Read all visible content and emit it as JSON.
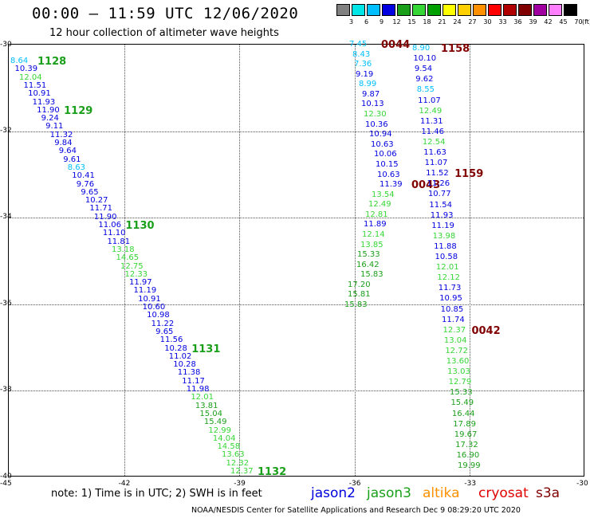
{
  "title": "00:00 – 11:59 UTC 12/06/2020",
  "subtitle": "12 hour collection of altimeter wave heights",
  "colorbar": {
    "labels": [
      "3",
      "6",
      "9",
      "12",
      "15",
      "18",
      "21",
      "24",
      "27",
      "30",
      "33",
      "36",
      "39",
      "42",
      "45",
      "70"
    ],
    "unit": "(ft)",
    "colors": [
      "#808080",
      "#00e5e5",
      "#00bfff",
      "#0000e0",
      "#1a9f1a",
      "#36d636",
      "#00a000",
      "#ffff00",
      "#ffd000",
      "#ff9000",
      "#ff0000",
      "#b00000",
      "#800000",
      "#a000a0",
      "#ff80ff",
      "#000000"
    ]
  },
  "map_data": {
    "lon_range": [
      -45,
      -30
    ],
    "lat_range": [
      -40,
      -30
    ],
    "x_ticks": [
      -45,
      -42,
      -39,
      -36,
      -33,
      -30
    ],
    "y_ticks": [
      -30,
      -32,
      -34,
      -36,
      -38,
      -40
    ],
    "grid": true
  },
  "tracks": [
    {
      "values": [
        {
          "v": "8.64",
          "c": "#00bfff"
        },
        {
          "v": "10.39",
          "c": "#0000e0"
        },
        {
          "v": "12.04",
          "c": "#36d636"
        },
        {
          "v": "11.51",
          "c": "#0000e0"
        },
        {
          "v": "10.91",
          "c": "#0000e0"
        },
        {
          "v": "11.93",
          "c": "#0000e0"
        },
        {
          "v": "11.90",
          "c": "#0000e0"
        },
        {
          "v": "9.24",
          "c": "#0000e0"
        },
        {
          "v": "9.11",
          "c": "#0000e0"
        },
        {
          "v": "11.32",
          "c": "#0000e0"
        },
        {
          "v": "9.84",
          "c": "#0000e0"
        },
        {
          "v": "9.64",
          "c": "#0000e0"
        },
        {
          "v": "9.61",
          "c": "#0000e0"
        },
        {
          "v": "8.63",
          "c": "#00bfff"
        },
        {
          "v": "10.41",
          "c": "#0000e0"
        },
        {
          "v": "9.76",
          "c": "#0000e0"
        },
        {
          "v": "9.65",
          "c": "#0000e0"
        },
        {
          "v": "10.27",
          "c": "#0000e0"
        },
        {
          "v": "11.71",
          "c": "#0000e0"
        },
        {
          "v": "11.90",
          "c": "#0000e0"
        },
        {
          "v": "11.06",
          "c": "#0000e0"
        },
        {
          "v": "11.10",
          "c": "#0000e0"
        },
        {
          "v": "11.81",
          "c": "#0000e0"
        },
        {
          "v": "13.18",
          "c": "#36d636"
        },
        {
          "v": "14.65",
          "c": "#36d636"
        },
        {
          "v": "12.75",
          "c": "#36d636"
        },
        {
          "v": "12.33",
          "c": "#36d636"
        },
        {
          "v": "11.97",
          "c": "#0000e0"
        },
        {
          "v": "11.19",
          "c": "#0000e0"
        },
        {
          "v": "10.91",
          "c": "#0000e0"
        },
        {
          "v": "10.60",
          "c": "#0000e0"
        },
        {
          "v": "10.98",
          "c": "#0000e0"
        },
        {
          "v": "11.22",
          "c": "#0000e0"
        },
        {
          "v": "9.65",
          "c": "#0000e0"
        },
        {
          "v": "11.56",
          "c": "#0000e0"
        },
        {
          "v": "10.28",
          "c": "#0000e0"
        },
        {
          "v": "11.02",
          "c": "#0000e0"
        },
        {
          "v": "10.28",
          "c": "#0000e0"
        },
        {
          "v": "11.38",
          "c": "#0000e0"
        },
        {
          "v": "11.17",
          "c": "#0000e0"
        },
        {
          "v": "11.98",
          "c": "#0000e0"
        },
        {
          "v": "12.01",
          "c": "#36d636"
        },
        {
          "v": "13.81",
          "c": "#1a9f1a"
        },
        {
          "v": "15.04",
          "c": "#1a9f1a"
        },
        {
          "v": "15.49",
          "c": "#1a9f1a"
        },
        {
          "v": "12.99",
          "c": "#36d636"
        },
        {
          "v": "14.04",
          "c": "#36d636"
        },
        {
          "v": "14.58",
          "c": "#36d636"
        },
        {
          "v": "13.63",
          "c": "#36d636"
        },
        {
          "v": "12.32",
          "c": "#36d636"
        },
        {
          "v": "12.37",
          "c": "#36d636"
        }
      ],
      "times": [
        {
          "t": "1128",
          "c": "#1a9f1a",
          "idx": 0
        },
        {
          "t": "1129",
          "c": "#1a9f1a",
          "idx": 6
        },
        {
          "t": "1130",
          "c": "#1a9f1a",
          "idx": 20
        },
        {
          "t": "1131",
          "c": "#1a9f1a",
          "idx": 35
        },
        {
          "t": "1132",
          "c": "#1a9f1a",
          "idx": 50
        }
      ]
    },
    {
      "values": [
        {
          "v": "7.45",
          "c": "#00bfff"
        },
        {
          "v": "8.43",
          "c": "#00bfff"
        },
        {
          "v": "7.36",
          "c": "#00bfff"
        },
        {
          "v": "9.19",
          "c": "#0000e0"
        },
        {
          "v": "8.99",
          "c": "#00bfff"
        },
        {
          "v": "9.87",
          "c": "#0000e0"
        },
        {
          "v": "10.13",
          "c": "#0000e0"
        },
        {
          "v": "12.30",
          "c": "#36d636"
        },
        {
          "v": "10.36",
          "c": "#0000e0"
        },
        {
          "v": "10.94",
          "c": "#0000e0"
        },
        {
          "v": "10.63",
          "c": "#0000e0"
        },
        {
          "v": "10.06",
          "c": "#0000e0"
        },
        {
          "v": "10.15",
          "c": "#0000e0"
        },
        {
          "v": "10.63",
          "c": "#0000e0"
        },
        {
          "v": "11.39",
          "c": "#0000e0"
        },
        {
          "v": "13.54",
          "c": "#36d636"
        },
        {
          "v": "12.49",
          "c": "#36d636"
        },
        {
          "v": "12.81",
          "c": "#36d636"
        },
        {
          "v": "11.89",
          "c": "#0000e0"
        },
        {
          "v": "12.14",
          "c": "#36d636"
        },
        {
          "v": "13.85",
          "c": "#36d636"
        },
        {
          "v": "15.33",
          "c": "#1a9f1a"
        },
        {
          "v": "16.42",
          "c": "#1a9f1a"
        },
        {
          "v": "15.83",
          "c": "#1a9f1a"
        },
        {
          "v": "17.20",
          "c": "#1a9f1a"
        },
        {
          "v": "15.81",
          "c": "#1a9f1a"
        },
        {
          "v": "15.83",
          "c": "#1a9f1a"
        }
      ],
      "times": [
        {
          "t": "0044",
          "c": "#800000",
          "idx": 0
        },
        {
          "t": "0043",
          "c": "#800000",
          "idx": 14
        }
      ]
    },
    {
      "values": [
        {
          "v": "8.90",
          "c": "#00bfff"
        },
        {
          "v": "10.10",
          "c": "#0000e0"
        },
        {
          "v": "9.54",
          "c": "#0000e0"
        },
        {
          "v": "9.62",
          "c": "#0000e0"
        },
        {
          "v": "8.55",
          "c": "#00bfff"
        },
        {
          "v": "11.07",
          "c": "#0000e0"
        },
        {
          "v": "12.49",
          "c": "#36d636"
        },
        {
          "v": "11.31",
          "c": "#0000e0"
        },
        {
          "v": "11.46",
          "c": "#0000e0"
        },
        {
          "v": "12.54",
          "c": "#36d636"
        },
        {
          "v": "11.63",
          "c": "#0000e0"
        },
        {
          "v": "11.07",
          "c": "#0000e0"
        },
        {
          "v": "11.52",
          "c": "#0000e0"
        },
        {
          "v": "11.26",
          "c": "#0000e0"
        },
        {
          "v": "10.77",
          "c": "#0000e0"
        },
        {
          "v": "11.54",
          "c": "#0000e0"
        },
        {
          "v": "11.93",
          "c": "#0000e0"
        },
        {
          "v": "11.19",
          "c": "#0000e0"
        },
        {
          "v": "13.98",
          "c": "#36d636"
        },
        {
          "v": "11.88",
          "c": "#0000e0"
        },
        {
          "v": "10.58",
          "c": "#0000e0"
        },
        {
          "v": "12.01",
          "c": "#36d636"
        },
        {
          "v": "12.12",
          "c": "#36d636"
        },
        {
          "v": "11.73",
          "c": "#0000e0"
        },
        {
          "v": "10.95",
          "c": "#0000e0"
        },
        {
          "v": "10.85",
          "c": "#0000e0"
        },
        {
          "v": "11.74",
          "c": "#0000e0"
        },
        {
          "v": "12.37",
          "c": "#36d636"
        },
        {
          "v": "13.04",
          "c": "#36d636"
        },
        {
          "v": "12.72",
          "c": "#36d636"
        },
        {
          "v": "13.60",
          "c": "#36d636"
        },
        {
          "v": "13.03",
          "c": "#36d636"
        },
        {
          "v": "12.79",
          "c": "#36d636"
        },
        {
          "v": "15.33",
          "c": "#1a9f1a"
        },
        {
          "v": "15.49",
          "c": "#1a9f1a"
        },
        {
          "v": "16.44",
          "c": "#1a9f1a"
        },
        {
          "v": "17.89",
          "c": "#1a9f1a"
        },
        {
          "v": "19.67",
          "c": "#1a9f1a"
        },
        {
          "v": "17.32",
          "c": "#1a9f1a"
        },
        {
          "v": "16.90",
          "c": "#1a9f1a"
        },
        {
          "v": "19.99",
          "c": "#1a9f1a"
        }
      ],
      "times": [
        {
          "t": "1158",
          "c": "#800000",
          "idx": 0
        },
        {
          "t": "1159",
          "c": "#800000",
          "idx": 12
        },
        {
          "t": "0042",
          "c": "#800000",
          "idx": 27
        }
      ]
    }
  ],
  "note": "note:  1) Time is in UTC;  2) SWH is in feet",
  "legend": [
    {
      "label": "jason2",
      "color": "#0000e0"
    },
    {
      "label": "jason3",
      "color": "#1a9f1a"
    },
    {
      "label": "altika",
      "color": "#ff9000"
    },
    {
      "label": "cryosat",
      "color": "#e00000"
    },
    {
      "label": "s3a",
      "color": "#800000"
    }
  ],
  "footer": "NOAA/NESDIS Center for Satellite Applications and Research    Dec  9 08:29:20 UTC 2020"
}
